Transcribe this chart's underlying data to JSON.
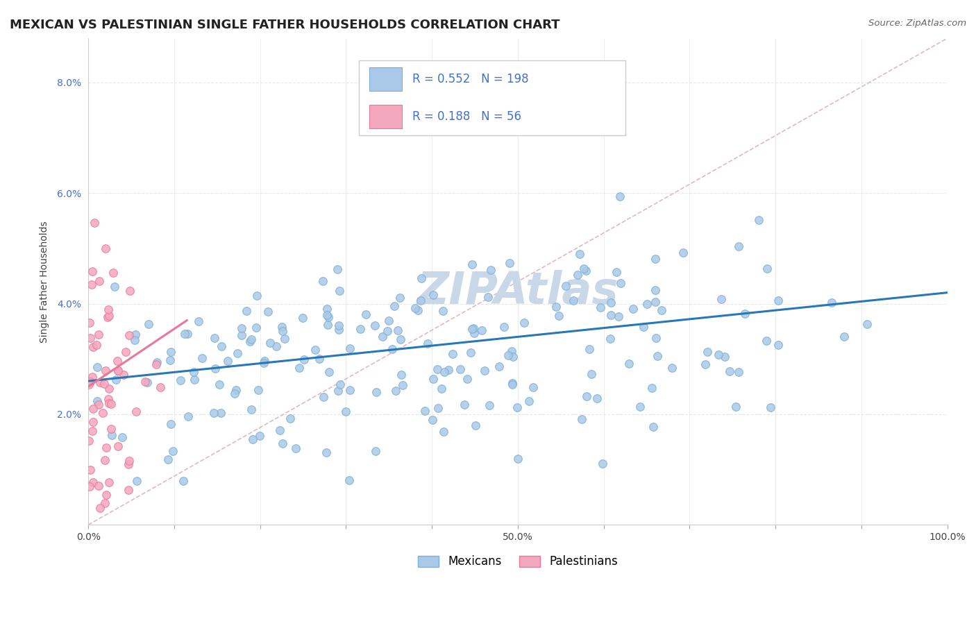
{
  "title": "MEXICAN VS PALESTINIAN SINGLE FATHER HOUSEHOLDS CORRELATION CHART",
  "source_text": "Source: ZipAtlas.com",
  "xlabel": "",
  "ylabel": "Single Father Households",
  "legend_mexicans": "Mexicans",
  "legend_palestinians": "Palestinians",
  "mexican_R": 0.552,
  "mexican_N": 198,
  "palestinian_R": 0.188,
  "palestinian_N": 56,
  "mexican_color": "#aac9e8",
  "mexican_color_dark": "#7bafd4",
  "palestinian_color": "#f4a8be",
  "palestinian_color_dark": "#e8789a",
  "trendline_color": "#2878b8",
  "trendline_pal_color": "#e8789a",
  "diagonal_color": "#e0b0b8",
  "background_color": "#ffffff",
  "watermark_color": "#c8d8e8",
  "xlim": [
    0.0,
    1.0
  ],
  "ylim": [
    0.0,
    0.088
  ],
  "x_ticks": [
    0.0,
    0.1,
    0.2,
    0.3,
    0.4,
    0.5,
    0.6,
    0.7,
    0.8,
    0.9,
    1.0
  ],
  "x_tick_labels": [
    "0.0%",
    "",
    "",
    "",
    "",
    "50.0%",
    "",
    "",
    "",
    "",
    "100.0%"
  ],
  "y_ticks": [
    0.0,
    0.02,
    0.04,
    0.06,
    0.08
  ],
  "y_tick_labels": [
    "",
    "2.0%",
    "4.0%",
    "6.0%",
    "8.0%"
  ],
  "grid_color": "#e8e8e8",
  "title_fontsize": 13,
  "axis_label_fontsize": 10,
  "tick_fontsize": 10,
  "legend_fontsize": 12,
  "mex_trend_start_x": 0.0,
  "mex_trend_start_y": 0.026,
  "mex_trend_end_x": 1.0,
  "mex_trend_end_y": 0.042,
  "pal_trend_start_x": 0.0,
  "pal_trend_start_y": 0.025,
  "pal_trend_end_x": 0.115,
  "pal_trend_end_y": 0.037
}
